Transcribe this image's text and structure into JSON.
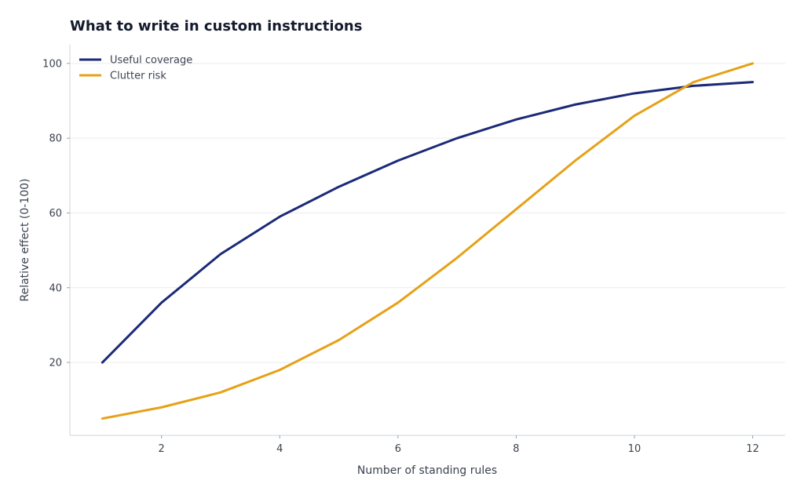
{
  "chart_data": {
    "type": "line",
    "title": "What to write in custom instructions",
    "xlabel": "Number of standing rules",
    "ylabel": "Relative effect (0-100)",
    "x": [
      1,
      2,
      3,
      4,
      5,
      6,
      7,
      8,
      9,
      10,
      11,
      12
    ],
    "xlim": [
      0.45,
      12.55
    ],
    "ylim": [
      0.5,
      105
    ],
    "xticks": [
      2,
      4,
      6,
      8,
      10,
      12
    ],
    "yticks": [
      20,
      40,
      60,
      80,
      100
    ],
    "grid": "horizontal",
    "legend_position": "top-left",
    "series": [
      {
        "name": "Useful coverage",
        "color": "#1b2a78",
        "values": [
          20,
          36,
          49,
          59,
          67,
          74,
          80,
          85,
          89,
          92,
          94,
          95
        ]
      },
      {
        "name": "Clutter risk",
        "color": "#e6a117",
        "values": [
          5,
          8,
          12,
          18,
          26,
          36,
          48,
          61,
          74,
          86,
          95,
          100
        ]
      }
    ]
  }
}
